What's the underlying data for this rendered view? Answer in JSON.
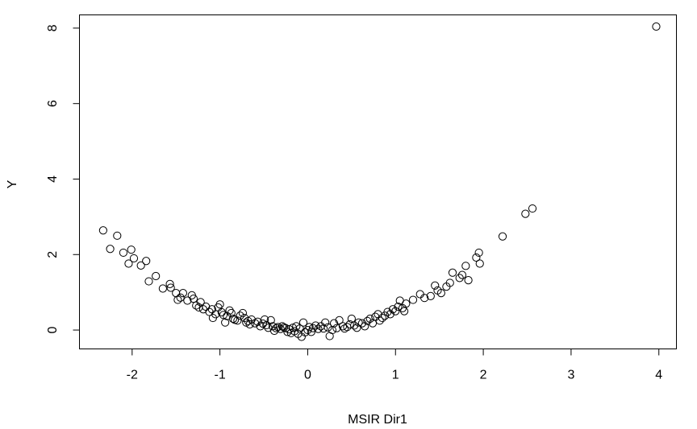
{
  "chart_data": {
    "type": "scatter",
    "title": "",
    "xlabel": "MSIR Dir1",
    "ylabel": "Y",
    "xlim": [
      -2.6,
      4.2
    ],
    "ylim": [
      -0.5,
      8.35
    ],
    "xticks": [
      -2,
      -1,
      0,
      1,
      2,
      3,
      4
    ],
    "xtick_labels": [
      "-2",
      "-1",
      "0",
      "1",
      "2",
      "3",
      "4"
    ],
    "yticks": [
      0,
      2,
      4,
      6,
      8
    ],
    "ytick_labels": [
      "0",
      "2",
      "4",
      "6",
      "8"
    ],
    "grid": false,
    "legend": "none",
    "points": [
      [
        -2.33,
        2.64
      ],
      [
        -2.25,
        2.15
      ],
      [
        -2.17,
        2.5
      ],
      [
        -2.1,
        2.05
      ],
      [
        -2.04,
        1.76
      ],
      [
        -2.01,
        2.13
      ],
      [
        -1.98,
        1.9
      ],
      [
        -1.9,
        1.71
      ],
      [
        -1.84,
        1.83
      ],
      [
        -1.81,
        1.29
      ],
      [
        -1.73,
        1.43
      ],
      [
        -1.65,
        1.1
      ],
      [
        -1.57,
        1.22
      ],
      [
        -1.56,
        1.12
      ],
      [
        -1.5,
        0.98
      ],
      [
        -1.48,
        0.8
      ],
      [
        -1.45,
        0.86
      ],
      [
        -1.42,
        0.98
      ],
      [
        -1.37,
        0.78
      ],
      [
        -1.32,
        0.92
      ],
      [
        -1.3,
        0.83
      ],
      [
        -1.27,
        0.65
      ],
      [
        -1.24,
        0.6
      ],
      [
        -1.22,
        0.74
      ],
      [
        -1.19,
        0.55
      ],
      [
        -1.16,
        0.62
      ],
      [
        -1.12,
        0.48
      ],
      [
        -1.09,
        0.55
      ],
      [
        -1.08,
        0.32
      ],
      [
        -1.05,
        0.42
      ],
      [
        -1.02,
        0.6
      ],
      [
        -1.0,
        0.68
      ],
      [
        -0.98,
        0.47
      ],
      [
        -0.96,
        0.4
      ],
      [
        -0.94,
        0.2
      ],
      [
        -0.92,
        0.37
      ],
      [
        -0.89,
        0.52
      ],
      [
        -0.87,
        0.45
      ],
      [
        -0.85,
        0.3
      ],
      [
        -0.83,
        0.27
      ],
      [
        -0.8,
        0.25
      ],
      [
        -0.77,
        0.38
      ],
      [
        -0.74,
        0.45
      ],
      [
        -0.72,
        0.32
      ],
      [
        -0.7,
        0.2
      ],
      [
        -0.68,
        0.24
      ],
      [
        -0.66,
        0.15
      ],
      [
        -0.64,
        0.28
      ],
      [
        -0.6,
        0.18
      ],
      [
        -0.57,
        0.22
      ],
      [
        -0.54,
        0.1
      ],
      [
        -0.51,
        0.17
      ],
      [
        -0.49,
        0.28
      ],
      [
        -0.47,
        0.13
      ],
      [
        -0.45,
        0.06
      ],
      [
        -0.42,
        0.26
      ],
      [
        -0.4,
        0.1
      ],
      [
        -0.38,
        -0.02
      ],
      [
        -0.36,
        0.05
      ],
      [
        -0.34,
        0.08
      ],
      [
        -0.31,
        0.03
      ],
      [
        -0.29,
        0.1
      ],
      [
        -0.27,
        0.07
      ],
      [
        -0.25,
        0.05
      ],
      [
        -0.23,
        -0.05
      ],
      [
        -0.21,
        0.02
      ],
      [
        -0.19,
        -0.08
      ],
      [
        -0.17,
        0.06
      ],
      [
        -0.15,
        -0.03
      ],
      [
        -0.13,
        0.1
      ],
      [
        -0.11,
        -0.1
      ],
      [
        -0.09,
        0.04
      ],
      [
        -0.07,
        -0.18
      ],
      [
        -0.05,
        0.2
      ],
      [
        -0.03,
        -0.06
      ],
      [
        0.0,
        0.0
      ],
      [
        0.02,
        0.08
      ],
      [
        0.04,
        -0.05
      ],
      [
        0.06,
        0.05
      ],
      [
        0.09,
        0.12
      ],
      [
        0.12,
        0.03
      ],
      [
        0.15,
        0.1
      ],
      [
        0.18,
        0.04
      ],
      [
        0.2,
        0.2
      ],
      [
        0.23,
        0.07
      ],
      [
        0.25,
        -0.16
      ],
      [
        0.28,
        0.0
      ],
      [
        0.3,
        0.18
      ],
      [
        0.33,
        0.05
      ],
      [
        0.36,
        0.26
      ],
      [
        0.4,
        0.1
      ],
      [
        0.42,
        0.04
      ],
      [
        0.45,
        0.08
      ],
      [
        0.48,
        0.15
      ],
      [
        0.5,
        0.3
      ],
      [
        0.53,
        0.12
      ],
      [
        0.56,
        0.06
      ],
      [
        0.58,
        0.2
      ],
      [
        0.62,
        0.18
      ],
      [
        0.65,
        0.1
      ],
      [
        0.68,
        0.24
      ],
      [
        0.71,
        0.3
      ],
      [
        0.74,
        0.18
      ],
      [
        0.77,
        0.35
      ],
      [
        0.8,
        0.42
      ],
      [
        0.82,
        0.25
      ],
      [
        0.85,
        0.32
      ],
      [
        0.88,
        0.38
      ],
      [
        0.91,
        0.48
      ],
      [
        0.94,
        0.42
      ],
      [
        0.97,
        0.55
      ],
      [
        1.0,
        0.5
      ],
      [
        1.03,
        0.62
      ],
      [
        1.05,
        0.78
      ],
      [
        1.08,
        0.58
      ],
      [
        1.1,
        0.5
      ],
      [
        1.12,
        0.7
      ],
      [
        1.2,
        0.8
      ],
      [
        1.28,
        0.95
      ],
      [
        1.33,
        0.85
      ],
      [
        1.4,
        0.9
      ],
      [
        1.45,
        1.18
      ],
      [
        1.48,
        1.05
      ],
      [
        1.52,
        0.98
      ],
      [
        1.58,
        1.15
      ],
      [
        1.62,
        1.25
      ],
      [
        1.65,
        1.52
      ],
      [
        1.73,
        1.38
      ],
      [
        1.76,
        1.46
      ],
      [
        1.8,
        1.7
      ],
      [
        1.83,
        1.32
      ],
      [
        1.92,
        1.92
      ],
      [
        1.95,
        2.05
      ],
      [
        1.96,
        1.76
      ],
      [
        2.22,
        2.48
      ],
      [
        2.48,
        3.08
      ],
      [
        2.56,
        3.22
      ],
      [
        3.97,
        8.04
      ]
    ]
  }
}
